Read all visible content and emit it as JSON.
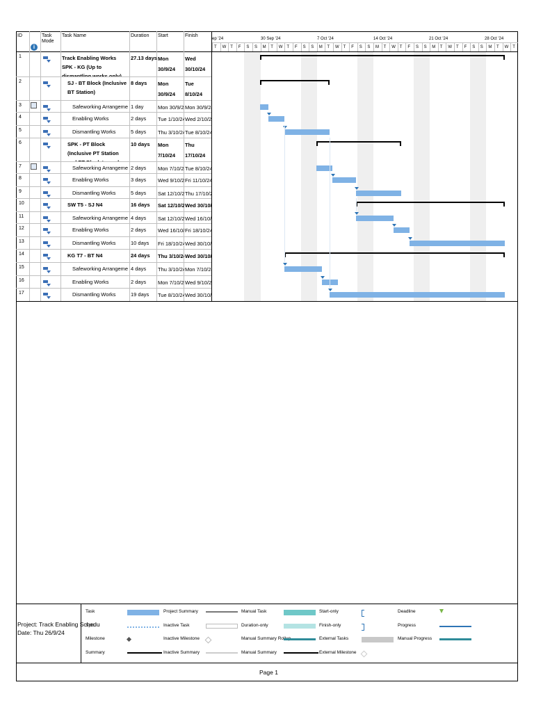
{
  "columns": {
    "id": "ID",
    "info": "i",
    "mode": "Task Mode",
    "name": "Task Name",
    "duration": "Duration",
    "start": "Start",
    "finish": "Finish"
  },
  "timescale": {
    "weeks": [
      "ep '24",
      "30 Sep '24",
      "7 Oct '24",
      "14 Oct '24",
      "21 Oct '24",
      "28 Oct '24"
    ],
    "days": [
      "T",
      "W",
      "T",
      "F",
      "S",
      "S",
      "M",
      "T",
      "W",
      "T",
      "F",
      "S",
      "S",
      "M",
      "T",
      "W",
      "T",
      "F",
      "S",
      "S",
      "M",
      "T",
      "W",
      "T",
      "F",
      "S",
      "S",
      "M",
      "T",
      "W",
      "T",
      "F",
      "S",
      "S",
      "M",
      "T",
      "W",
      "T"
    ]
  },
  "tasks": [
    {
      "id": "1",
      "name": "Track Enabling Works SPK - KG (Up to dismantling works only)",
      "duration": "27.13 days",
      "start": "Mon 30/9/24",
      "finish": "Wed 30/10/24",
      "summary": true,
      "indent": 0
    },
    {
      "id": "2",
      "name": "SJ - BT Block (Inclusive BT Station)",
      "duration": "8 days",
      "start": "Mon 30/9/24",
      "finish": "Tue 8/10/24",
      "summary": true,
      "indent": 1
    },
    {
      "id": "3",
      "name": "Safeworking Arrangement",
      "duration": "1 day",
      "start": "Mon 30/9/24",
      "finish": "Mon 30/9/24",
      "summary": false,
      "indent": 2,
      "cal": true
    },
    {
      "id": "4",
      "name": "Enabling Works",
      "duration": "2 days",
      "start": "Tue 1/10/24",
      "finish": "Wed 2/10/24",
      "summary": false,
      "indent": 2
    },
    {
      "id": "5",
      "name": "Dismantling Works",
      "duration": "5 days",
      "start": "Thu 3/10/24",
      "finish": "Tue 8/10/24",
      "summary": false,
      "indent": 2
    },
    {
      "id": "6",
      "name": "SPK - PT Block (Inclusive PT Station and PT Block toward",
      "duration": "10 days",
      "start": "Mon 7/10/24",
      "finish": "Thu 17/10/24",
      "summary": true,
      "indent": 1
    },
    {
      "id": "7",
      "name": "Safeworking Arrangement",
      "duration": "2 days",
      "start": "Mon 7/10/24",
      "finish": "Tue 8/10/24",
      "summary": false,
      "indent": 2,
      "cal": true
    },
    {
      "id": "8",
      "name": "Enabling Works",
      "duration": "3 days",
      "start": "Wed 9/10/24",
      "finish": "Fri 11/10/24",
      "summary": false,
      "indent": 2
    },
    {
      "id": "9",
      "name": "Dismantling Works",
      "duration": "5 days",
      "start": "Sat 12/10/24",
      "finish": "Thu 17/10/24",
      "summary": false,
      "indent": 2
    },
    {
      "id": "10",
      "name": "SW T5 - SJ N4",
      "duration": "16 days",
      "start": "Sat 12/10/24",
      "finish": "Wed 30/10/2",
      "summary": true,
      "indent": 1
    },
    {
      "id": "11",
      "name": "Safeworking Arrangement",
      "duration": "4 days",
      "start": "Sat 12/10/24",
      "finish": "Wed 16/10/2",
      "summary": false,
      "indent": 2
    },
    {
      "id": "12",
      "name": "Enabling Works",
      "duration": "2 days",
      "start": "Wed 16/10/2",
      "finish": "Fri 18/10/24",
      "summary": false,
      "indent": 2
    },
    {
      "id": "13",
      "name": "Dismantling Works",
      "duration": "10 days",
      "start": "Fri 18/10/24",
      "finish": "Wed 30/10/2",
      "summary": false,
      "indent": 2
    },
    {
      "id": "14",
      "name": "KG T7 - BT N4",
      "duration": "24 days",
      "start": "Thu 3/10/24",
      "finish": "Wed 30/10/2",
      "summary": true,
      "indent": 1
    },
    {
      "id": "15",
      "name": "Safeworking Arrangement",
      "duration": "4 days",
      "start": "Thu 3/10/24",
      "finish": "Mon 7/10/24",
      "summary": false,
      "indent": 2
    },
    {
      "id": "16",
      "name": "Enabling Works",
      "duration": "2 days",
      "start": "Mon 7/10/24",
      "finish": "Wed 9/10/24",
      "summary": false,
      "indent": 2
    },
    {
      "id": "17",
      "name": "Dismantling Works",
      "duration": "19 days",
      "start": "Tue 8/10/24",
      "finish": "Wed 30/10/24",
      "summary": false,
      "indent": 2
    }
  ],
  "legend": {
    "project": "Project: Track Enabling Schedu",
    "date": "Date: Thu 26/9/24",
    "items": [
      [
        "Task",
        "Project Summary",
        "Manual Task",
        "Start-only",
        "Deadline"
      ],
      [
        "Split",
        "Inactive Task",
        "Duration-only",
        "Finish-only",
        "Progress"
      ],
      [
        "Milestone",
        "Inactive Milestone",
        "Manual Summary Rollup",
        "External Tasks",
        "Manual Progress"
      ],
      [
        "Summary",
        "Inactive Summary",
        "Manual Summary",
        "External Milestone",
        ""
      ]
    ]
  },
  "footer": {
    "page": "Page 1"
  },
  "colors": {
    "task_bar": "#7fb2e5",
    "summary_bar": "#000000",
    "manual_task": "#6fc8c8",
    "progress": "#2e75b6",
    "weekend": "#efefef"
  }
}
